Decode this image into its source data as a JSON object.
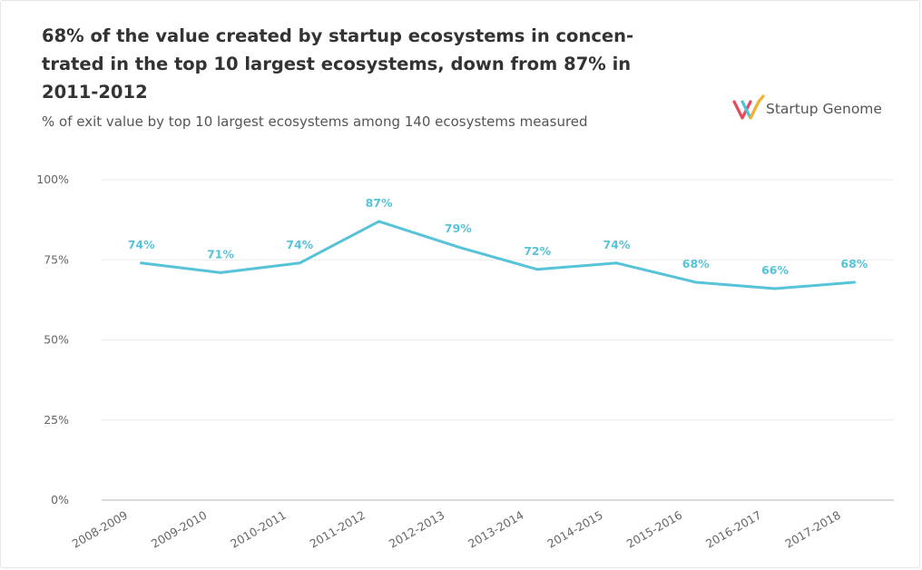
{
  "header": {
    "title": "68% of the value created by startup ecosystems in concen-trated in the top 10 largest ecosystems, down from 87% in 2011-2012",
    "subtitle": "% of exit value by top 10 largest ecosystems among 140 ecosystems measured"
  },
  "brand": {
    "name": "Startup Genome",
    "logo_icon": "startup-genome-logo-icon",
    "logo_colors": [
      "#e8485c",
      "#4cc4dc",
      "#f3b12e"
    ]
  },
  "chart_data": {
    "type": "line",
    "title": "68% of the value created by startup ecosystems in concen-trated in the top 10 largest ecosystems, down from 87% in 2011-2012",
    "subtitle": "% of exit value by top 10 largest ecosystems among 140 ecosystems measured",
    "categories": [
      "2008-2009",
      "2009-2010",
      "2010-2011",
      "2011-2012",
      "2012-2013",
      "2013-2014",
      "2014-2015",
      "2015-2016",
      "2016-2017",
      "2017-2018"
    ],
    "values": [
      74,
      71,
      74,
      87,
      79,
      72,
      74,
      68,
      66,
      68
    ],
    "data_labels": [
      "74%",
      "71%",
      "74%",
      "87%",
      "79%",
      "72%",
      "74%",
      "68%",
      "66%",
      "68%"
    ],
    "yticks": [
      0,
      25,
      50,
      75,
      100
    ],
    "ytick_labels": [
      "0%",
      "25%",
      "50%",
      "75%",
      "100%"
    ],
    "ylim": [
      0,
      100
    ],
    "xlabel": "",
    "ylabel": "",
    "grid": true,
    "legend": "none",
    "line_color": "#57c3d8",
    "label_color": "#57c3d8"
  }
}
